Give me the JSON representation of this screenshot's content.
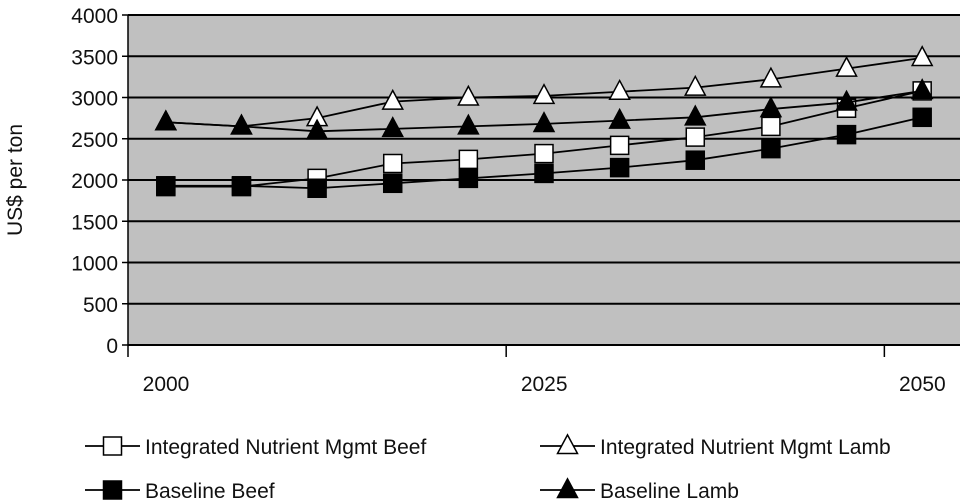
{
  "chart_data": {
    "type": "line",
    "title": "",
    "xlabel": "",
    "ylabel": "US$ per ton",
    "ylim": [
      0,
      4000
    ],
    "y_ticks": [
      "0",
      "500",
      "1000",
      "1500",
      "2000",
      "2500",
      "3000",
      "3500",
      "4000"
    ],
    "x_ticks": [
      "2000",
      "2025",
      "2050"
    ],
    "xlim": [
      2000,
      2055
    ],
    "grid": "horizontal",
    "background": "#c0c0c0",
    "legend_placement": "bottom",
    "x": [
      2002.5,
      2007.5,
      2012.5,
      2017.5,
      2022.5,
      2027.5,
      2032.5,
      2037.5,
      2042.5,
      2047.5,
      2052.5
    ],
    "series": [
      {
        "name": "Integrated Nutrient Mgmt Beef",
        "marker": "square-open",
        "values": [
          1920,
          1920,
          2020,
          2200,
          2250,
          2320,
          2420,
          2520,
          2650,
          2870,
          3080
        ]
      },
      {
        "name": "Integrated Nutrient Mgmt Lamb",
        "marker": "triangle-open",
        "values": [
          2700,
          2650,
          2750,
          2950,
          3000,
          3020,
          3070,
          3120,
          3220,
          3350,
          3480
        ]
      },
      {
        "name": "Baseline Beef",
        "marker": "square-filled",
        "values": [
          1930,
          1930,
          1900,
          1960,
          2020,
          2080,
          2150,
          2240,
          2380,
          2550,
          2760
        ]
      },
      {
        "name": "Baseline Lamb",
        "marker": "triangle-filled",
        "values": [
          2700,
          2650,
          2590,
          2620,
          2650,
          2680,
          2720,
          2760,
          2860,
          2940,
          3080
        ]
      }
    ]
  }
}
